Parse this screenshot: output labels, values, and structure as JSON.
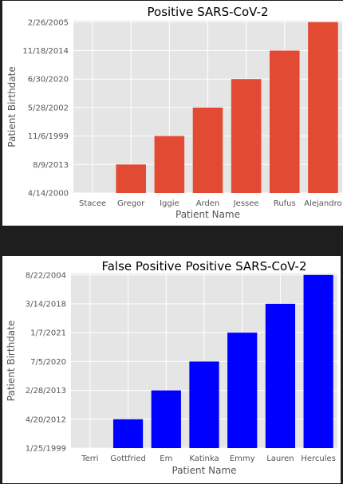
{
  "chart_data": [
    {
      "type": "bar",
      "title": "Positive SARS-CoV-2",
      "xlabel": "Patient Name",
      "ylabel": "Patient Birthdate",
      "categories": [
        "Stacee",
        "Gregor",
        "Iggie",
        "Arden",
        "Jessee",
        "Rufus",
        "Alejandro"
      ],
      "y_ticks": [
        "4/14/2000",
        "8/9/2013",
        "11/6/1999",
        "5/28/2002",
        "6/30/2020",
        "11/18/2014",
        "2/26/2005"
      ],
      "values": [
        "4/14/2000",
        "8/9/2013",
        "11/6/1999",
        "5/28/2002",
        "6/30/2020",
        "11/18/2014",
        "2/26/2005"
      ],
      "grid": true,
      "colors": {
        "bar": "#e24a33",
        "background": "#e5e5e5",
        "grid": "#ffffff"
      }
    },
    {
      "type": "bar",
      "title": "False Positive Positive SARS-CoV-2",
      "xlabel": "Patient Name",
      "ylabel": "Patient Birthdate",
      "categories": [
        "Terri",
        "Gottfried",
        "Em",
        "Katinka",
        "Emmy",
        "Lauren",
        "Hercules"
      ],
      "y_ticks": [
        "1/25/1999",
        "4/20/2012",
        "2/28/2013",
        "7/5/2020",
        "1/7/2021",
        "3/14/2018",
        "8/22/2004"
      ],
      "values": [
        "1/25/1999",
        "4/20/2012",
        "2/28/2013",
        "7/5/2020",
        "1/7/2021",
        "3/14/2018",
        "8/22/2004"
      ],
      "grid": true,
      "colors": {
        "bar": "#0000ff",
        "background": "#e5e5e5",
        "grid": "#ffffff"
      }
    }
  ]
}
